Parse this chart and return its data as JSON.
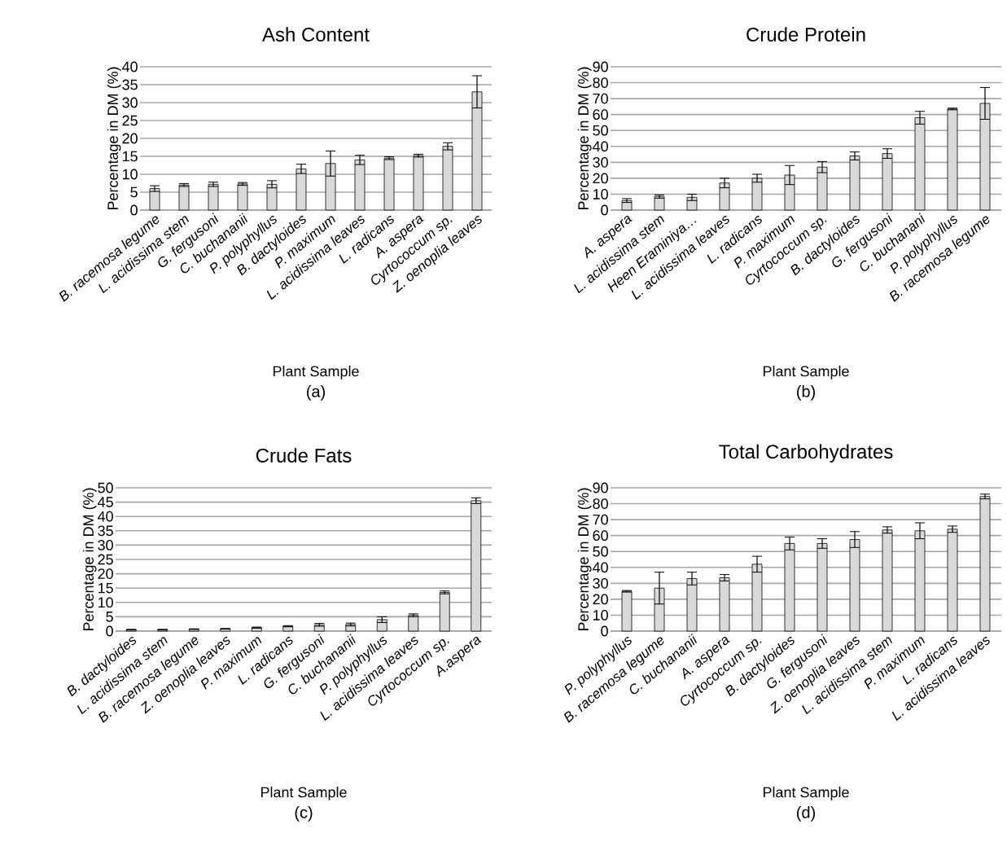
{
  "chart_data": [
    {
      "type": "bar",
      "title": "Ash Content",
      "xlabel": "Plant Sample",
      "ylabel": "Percentage in DM (%)",
      "color": "#d9d9d9",
      "grid": "y",
      "categories": [
        "B. racemosa legume",
        "L. acidissima stem",
        "G. fergusoni",
        "C. buchananii",
        "P. polyphyllus",
        "B. dactyloides",
        "P. maximum",
        "L. acidissima leaves",
        "L. radicans",
        "A. aspera",
        "Cyrtococcum sp.",
        "Z. oenoplia leaves"
      ],
      "values": [
        6,
        7,
        7.2,
        7.3,
        7.2,
        11.5,
        13,
        14,
        14.5,
        15.2,
        17.8,
        33
      ],
      "errors": [
        0.8,
        0.4,
        0.6,
        0.4,
        1,
        1.3,
        3.5,
        1.3,
        0.4,
        0.4,
        1,
        4.5
      ],
      "ylim": [
        0,
        40
      ],
      "yticks": [
        0,
        5,
        10,
        15,
        20,
        25,
        30,
        35,
        40
      ],
      "annotations": [
        "(a)"
      ]
    },
    {
      "type": "bar",
      "title": "Crude Protein",
      "xlabel": "Plant Sample",
      "ylabel": "Percentage in DM (%)",
      "color": "#d9d9d9",
      "grid": "y",
      "categories": [
        "A. aspera",
        "L. acidissima stem",
        "Heen Eraminiya…",
        "L. acidissima leaves",
        "L. radicans",
        "P. maximum",
        "Cyrtococcum sp.",
        "B. dactyloides",
        "G. fergusoni",
        "C. buchanani",
        "P. polyphyllus",
        "B. racemosa legume"
      ],
      "values": [
        6,
        8.5,
        8,
        17,
        20,
        22,
        27,
        34,
        35.5,
        58,
        63.5,
        67
      ],
      "errors": [
        1.2,
        1,
        2,
        3,
        2.5,
        6,
        3.5,
        2.5,
        3,
        4,
        0.5,
        10
      ],
      "ylim": [
        0,
        90
      ],
      "yticks": [
        0,
        10,
        20,
        30,
        40,
        50,
        60,
        70,
        80,
        90
      ],
      "annotations": [
        "(b)"
      ]
    },
    {
      "type": "bar",
      "title": "Crude Fats",
      "xlabel": "Plant Sample",
      "ylabel": "Percentage in DM (%)",
      "color": "#d9d9d9",
      "grid": "y",
      "categories": [
        "B. dactyloides",
        "L. acidissima stem",
        "B. racemosa legume",
        "Z. oenoplia leaves",
        "P. maximum",
        "L. radicans",
        "G. fergusoni",
        "C. buchananii",
        "P. polyphyllus",
        "L. acidissima leaves",
        "Cyrtococcum sp.",
        "A.aspera"
      ],
      "values": [
        0.5,
        0.5,
        0.7,
        0.8,
        1.2,
        1.7,
        2.2,
        2.3,
        4,
        5.5,
        13.5,
        45.5
      ],
      "errors": [
        0.1,
        0.1,
        0.1,
        0.1,
        0.2,
        0.2,
        0.5,
        0.5,
        1,
        0.5,
        0.5,
        1
      ],
      "ylim": [
        0,
        50
      ],
      "yticks": [
        0,
        5,
        10,
        15,
        20,
        25,
        30,
        35,
        40,
        45,
        50
      ],
      "annotations": [
        "(c)"
      ]
    },
    {
      "type": "bar",
      "title": "Total Carbohydrates",
      "xlabel": "Plant Sample",
      "ylabel": "Percentage in DM (%)",
      "color": "#d9d9d9",
      "grid": "y",
      "categories": [
        "P. polyphyllus",
        "B. racemosa legume",
        "C. buchananii",
        "A. aspera",
        "Cyrtococcum sp.",
        "B. dactyloides",
        "G. fergusoni",
        "Z. oenoplia leaves",
        "L. acidissima stem",
        "P. maximum",
        "L. radicans",
        "L. acidissima leaves"
      ],
      "values": [
        25,
        27,
        33,
        33.5,
        42,
        55,
        55,
        57.5,
        63.5,
        63,
        64,
        84.5
      ],
      "errors": [
        0.5,
        10,
        4,
        2,
        5,
        4,
        3,
        5,
        2,
        5,
        2,
        1.5
      ],
      "ylim": [
        0,
        90
      ],
      "yticks": [
        0,
        10,
        20,
        30,
        40,
        50,
        60,
        70,
        80,
        90
      ],
      "annotations": [
        "(d)"
      ]
    }
  ]
}
